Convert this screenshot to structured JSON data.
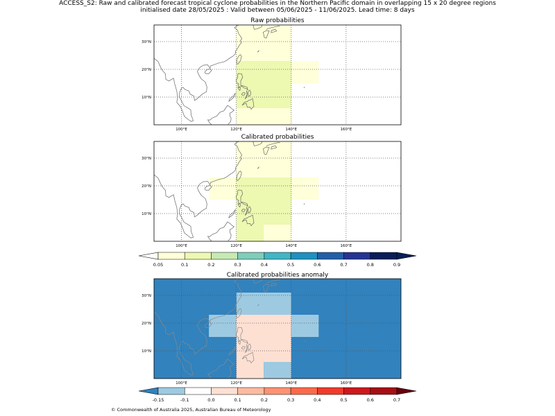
{
  "figure": {
    "title_line1": "ACCESS_S2: Raw and calibrated forecast tropical cyclone probabilities in the Northern Pacific domain in overlapping 15 x 20 degree regions",
    "title_line2": "initialised date 28/05/2025 :  Valid between 05/06/2025 - 11/06/2025. Lead time: 8 days",
    "copyright": "© Commonwealth of Australia 2025, Australian Bureau of Meteorology"
  },
  "colors": {
    "prob_palette": [
      "#ffffd9",
      "#edf8b1",
      "#c7e9b4",
      "#7fcdbb",
      "#41b6c4",
      "#1d91c0",
      "#225ea8",
      "#253494",
      "#081d58"
    ],
    "prob_under": "#ffffff",
    "prob_over": "#081d58",
    "anom_palette": [
      "#9ecae1",
      "#ffffff",
      "#fee0d2",
      "#fcbba1",
      "#fc9272",
      "#fb6a4a",
      "#ef3b2c",
      "#cb181d",
      "#a50f15"
    ],
    "anom_under": "#3182bd",
    "anom_over": "#67000d",
    "coast": "#666666",
    "coast_on_fill": "#8a8a8a",
    "grid": "#555555"
  },
  "chart_data": [
    {
      "type": "heatmap",
      "title": "Raw probabilities",
      "xlim": [
        90,
        180
      ],
      "ylim": [
        0,
        36
      ],
      "xticks": [
        {
          "v": 100,
          "label": "100°E"
        },
        {
          "v": 120,
          "label": "120°E"
        },
        {
          "v": 140,
          "label": "140°E"
        },
        {
          "v": 160,
          "label": "160°E"
        }
      ],
      "yticks": [
        {
          "v": 10,
          "label": "10°N"
        },
        {
          "v": 20,
          "label": "20°N"
        },
        {
          "v": 30,
          "label": "30°N"
        }
      ],
      "background": "#ffffff",
      "cells": [
        {
          "lon": [
            120,
            140
          ],
          "lat": [
            22,
            30
          ],
          "value": 0.07
        },
        {
          "lon": [
            120,
            140
          ],
          "lat": [
            30,
            36
          ],
          "value": 0.07
        },
        {
          "lon": [
            140,
            150
          ],
          "lat": [
            15,
            22
          ],
          "value": 0.07
        },
        {
          "lon": [
            140,
            150
          ],
          "lat": [
            22,
            23
          ],
          "value": 0.07
        },
        {
          "lon": [
            120,
            140
          ],
          "lat": [
            6,
            22
          ],
          "value": 0.12
        },
        {
          "lon": [
            120,
            140
          ],
          "lat": [
            22,
            23
          ],
          "value": 0.12
        },
        {
          "lon": [
            120,
            140
          ],
          "lat": [
            0,
            6
          ],
          "value": 0.07
        }
      ]
    },
    {
      "type": "heatmap",
      "title": "Calibrated probabilities",
      "xlim": [
        90,
        180
      ],
      "ylim": [
        0,
        36
      ],
      "xticks": [
        {
          "v": 100,
          "label": "100°E"
        },
        {
          "v": 120,
          "label": "120°E"
        },
        {
          "v": 140,
          "label": "140°E"
        },
        {
          "v": 160,
          "label": "160°E"
        }
      ],
      "yticks": [
        {
          "v": 10,
          "label": "10°N"
        },
        {
          "v": 20,
          "label": "20°N"
        },
        {
          "v": 30,
          "label": "30°N"
        }
      ],
      "background": "#ffffff",
      "cells": [
        {
          "lon": [
            120,
            140
          ],
          "lat": [
            22,
            30
          ],
          "value": 0.07
        },
        {
          "lon": [
            120,
            140
          ],
          "lat": [
            30,
            36
          ],
          "value": 0.07
        },
        {
          "lon": [
            110,
            120
          ],
          "lat": [
            15,
            22
          ],
          "value": 0.07
        },
        {
          "lon": [
            110,
            120
          ],
          "lat": [
            22,
            23
          ],
          "value": 0.07
        },
        {
          "lon": [
            140,
            150
          ],
          "lat": [
            15,
            22
          ],
          "value": 0.07
        },
        {
          "lon": [
            140,
            150
          ],
          "lat": [
            22,
            23
          ],
          "value": 0.07
        },
        {
          "lon": [
            120,
            140
          ],
          "lat": [
            6,
            22
          ],
          "value": 0.12
        },
        {
          "lon": [
            120,
            140
          ],
          "lat": [
            22,
            23
          ],
          "value": 0.12
        },
        {
          "lon": [
            120,
            130
          ],
          "lat": [
            0,
            6
          ],
          "value": 0.12
        },
        {
          "lon": [
            130,
            140
          ],
          "lat": [
            0,
            6
          ],
          "value": 0.07
        }
      ]
    },
    {
      "type": "heatmap",
      "title": "Calibrated probabilities anomaly",
      "xlim": [
        90,
        180
      ],
      "ylim": [
        0,
        36
      ],
      "xticks": [
        {
          "v": 100,
          "label": "100°E"
        },
        {
          "v": 120,
          "label": "120°E"
        },
        {
          "v": 140,
          "label": "140°E"
        },
        {
          "v": 160,
          "label": "160°E"
        }
      ],
      "yticks": [
        {
          "v": 10,
          "label": "10°N"
        },
        {
          "v": 20,
          "label": "20°N"
        },
        {
          "v": 30,
          "label": "30°N"
        }
      ],
      "background": "#3182bd",
      "cells": [
        {
          "lon": [
            120,
            140
          ],
          "lat": [
            22,
            30
          ],
          "value": -0.12
        },
        {
          "lon": [
            120,
            140
          ],
          "lat": [
            30,
            31
          ],
          "value": -0.12
        },
        {
          "lon": [
            110,
            120
          ],
          "lat": [
            15,
            22
          ],
          "value": -0.12
        },
        {
          "lon": [
            110,
            120
          ],
          "lat": [
            22,
            23
          ],
          "value": -0.12
        },
        {
          "lon": [
            140,
            150
          ],
          "lat": [
            15,
            22
          ],
          "value": -0.12
        },
        {
          "lon": [
            140,
            150
          ],
          "lat": [
            22,
            23
          ],
          "value": -0.12
        },
        {
          "lon": [
            120,
            140
          ],
          "lat": [
            6,
            22
          ],
          "value": 0.0
        },
        {
          "lon": [
            120,
            140
          ],
          "lat": [
            22,
            23
          ],
          "value": 0.0
        },
        {
          "lon": [
            120,
            130
          ],
          "lat": [
            0,
            6
          ],
          "value": 0.0
        },
        {
          "lon": [
            130,
            140
          ],
          "lat": [
            0,
            6
          ],
          "value": -0.12
        }
      ]
    },
    {
      "type": "colorbar",
      "name": "probability",
      "labels": [
        "0.05",
        "0.1",
        "0.2",
        "0.3",
        "0.4",
        "0.5",
        "0.6",
        "0.7",
        "0.8",
        "0.9"
      ],
      "values": [
        0.05,
        0.1,
        0.2,
        0.3,
        0.4,
        0.5,
        0.6,
        0.7,
        0.8,
        0.9
      ]
    },
    {
      "type": "colorbar",
      "name": "anomaly",
      "labels": [
        "-0.15",
        "-0.1",
        "0.0",
        "0.1",
        "0.2",
        "0.3",
        "0.4",
        "0.5",
        "0.6",
        "0.7"
      ],
      "values": [
        -0.15,
        -0.1,
        0.0,
        0.1,
        0.2,
        0.3,
        0.4,
        0.5,
        0.6,
        0.7
      ]
    }
  ]
}
